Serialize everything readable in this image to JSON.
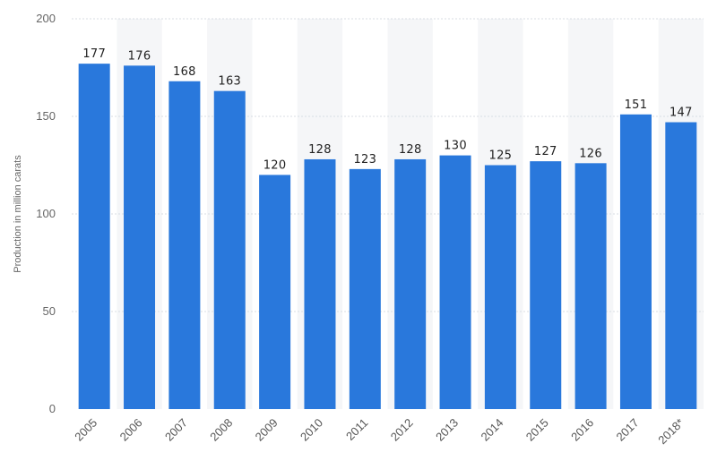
{
  "chart_data": {
    "type": "bar",
    "categories": [
      "2005",
      "2006",
      "2007",
      "2008",
      "2009",
      "2010",
      "2011",
      "2012",
      "2013",
      "2014",
      "2015",
      "2016",
      "2017",
      "2018*"
    ],
    "values": [
      177,
      176,
      168,
      163,
      120,
      128,
      123,
      128,
      130,
      125,
      127,
      126,
      151,
      147
    ],
    "data_labels": [
      "177",
      "176",
      "168",
      "163",
      "120",
      "128",
      "123",
      "128",
      "130",
      "125",
      "127",
      "126",
      "151",
      "147"
    ],
    "title": "",
    "xlabel": "",
    "ylabel": "Production in million carats",
    "ylim": [
      0,
      200
    ],
    "yticks": [
      0,
      50,
      100,
      150,
      200
    ],
    "ytick_labels": [
      "0",
      "50",
      "100",
      "150",
      "200"
    ],
    "grid": true,
    "legend": "none",
    "colors": {
      "bar": "#2978dc",
      "band": "#f5f6f8",
      "grid": "#d8dde3"
    }
  }
}
